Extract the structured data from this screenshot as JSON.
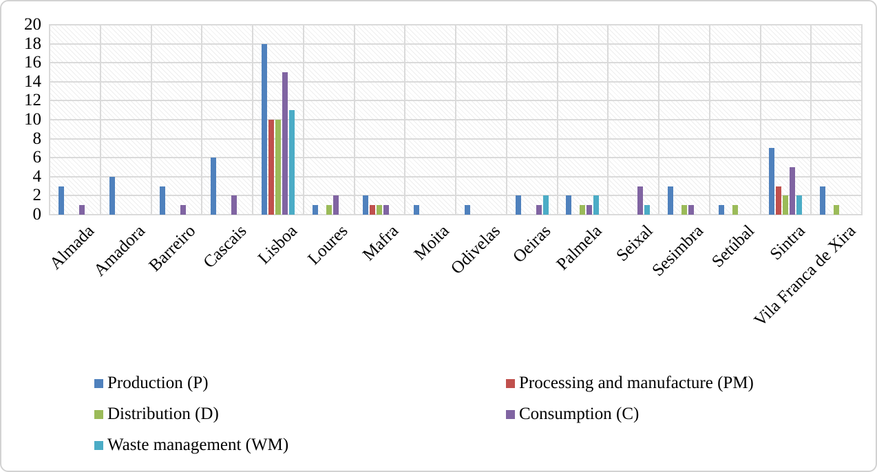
{
  "figure": {
    "background": "#FFFFFF",
    "border_color": "#D2D2D2"
  },
  "chart_data": {
    "type": "bar",
    "title": "",
    "xlabel": "",
    "ylabel": "",
    "categories": [
      "Almada",
      "Amadora",
      "Barreiro",
      "Cascais",
      "Lisboa",
      "Loures",
      "Mafra",
      "Moita",
      "Odivelas",
      "Oeiras",
      "Palmela",
      "Seixal",
      "Sesimbra",
      "Setúbal",
      "Sintra",
      "Vila Franca de Xira"
    ],
    "series": [
      {
        "name": "Production (P)",
        "color": "#4F81BD",
        "values": [
          3,
          4,
          3,
          6,
          18,
          1,
          2,
          1,
          1,
          2,
          2,
          0,
          3,
          1,
          7,
          3
        ]
      },
      {
        "name": "Processing and manufacture (PM)",
        "color": "#C0504D",
        "values": [
          0,
          0,
          0,
          0,
          10,
          0,
          1,
          0,
          0,
          0,
          0,
          0,
          0,
          0,
          3,
          0
        ]
      },
      {
        "name": "Distribution (D)",
        "color": "#9BBB59",
        "values": [
          0,
          0,
          0,
          0,
          10,
          1,
          1,
          0,
          0,
          0,
          1,
          0,
          1,
          1,
          2,
          1
        ]
      },
      {
        "name": "Consumption (C)",
        "color": "#8064A2",
        "values": [
          1,
          0,
          1,
          2,
          15,
          2,
          1,
          0,
          0,
          1,
          1,
          3,
          1,
          0,
          5,
          0
        ]
      },
      {
        "name": "Waste management (WM)",
        "color": "#4BACC6",
        "values": [
          0,
          0,
          0,
          0,
          11,
          0,
          0,
          0,
          0,
          2,
          2,
          1,
          0,
          0,
          2,
          0
        ]
      }
    ],
    "y_axis": {
      "min": 0,
      "max": 20,
      "step": 2,
      "tick_labels": [
        "0",
        "2",
        "4",
        "6",
        "8",
        "10",
        "12",
        "14",
        "16",
        "18",
        "20"
      ]
    },
    "grid": {
      "horizontal": true,
      "vertical": true,
      "color": "#DADADA"
    },
    "plot_background": "diagonal-hatch",
    "legend": {
      "position": "bottom",
      "rows": [
        [
          0,
          1
        ],
        [
          2,
          3
        ],
        [
          4
        ]
      ]
    }
  }
}
